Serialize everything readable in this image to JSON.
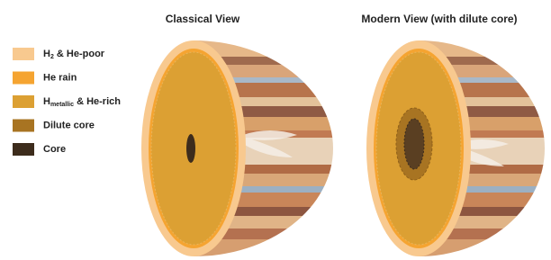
{
  "titles": [
    "Classical  View",
    "Modern View (with dilute core)"
  ],
  "legend": [
    {
      "parts": [
        {
          "text": "H"
        },
        {
          "text": "2",
          "sub": true
        },
        {
          "text": " & He-poor"
        }
      ],
      "color": "#f8c98f"
    },
    {
      "parts": [
        {
          "text": "He rain"
        }
      ],
      "color": "#f5a431"
    },
    {
      "parts": [
        {
          "text": "H"
        },
        {
          "text": "metallic",
          "sub": true
        },
        {
          "text": " & He-rich"
        }
      ],
      "color": "#dca033"
    },
    {
      "parts": [
        {
          "text": "Dilute core"
        }
      ],
      "color": "#a87422"
    },
    {
      "parts": [
        {
          "text": "Core"
        }
      ],
      "color": "#3d2c1c"
    }
  ]
}
